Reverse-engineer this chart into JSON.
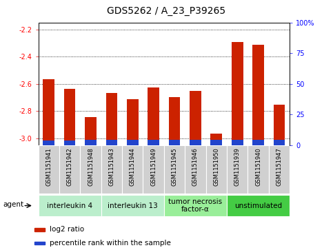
{
  "title": "GDS5262 / A_23_P39265",
  "samples": [
    "GSM1151941",
    "GSM1151942",
    "GSM1151948",
    "GSM1151943",
    "GSM1151944",
    "GSM1151949",
    "GSM1151945",
    "GSM1151946",
    "GSM1151950",
    "GSM1151939",
    "GSM1151940",
    "GSM1151947"
  ],
  "log2_values": [
    -2.565,
    -2.635,
    -2.845,
    -2.67,
    -2.715,
    -2.625,
    -2.7,
    -2.655,
    -2.965,
    -2.295,
    -2.315,
    -2.755
  ],
  "percentile_heights": [
    0.032,
    0.032,
    0.038,
    0.038,
    0.038,
    0.038,
    0.038,
    0.038,
    0.038,
    0.038,
    0.038,
    0.038
  ],
  "ymin": -3.05,
  "ymax": -2.15,
  "yticks": [
    -3.0,
    -2.8,
    -2.6,
    -2.4,
    -2.2
  ],
  "right_yticks": [
    0,
    25,
    50,
    75,
    100
  ],
  "groups": [
    {
      "label": "interleukin 4",
      "indices": [
        0,
        1,
        2
      ],
      "color": "#bbeecc"
    },
    {
      "label": "interleukin 13",
      "indices": [
        3,
        4,
        5
      ],
      "color": "#bbeecc"
    },
    {
      "label": "tumor necrosis\nfactor-α",
      "indices": [
        6,
        7,
        8
      ],
      "color": "#99ee99"
    },
    {
      "label": "unstimulated",
      "indices": [
        9,
        10,
        11
      ],
      "color": "#44cc44"
    }
  ],
  "bar_color_red": "#cc2200",
  "bar_color_blue": "#2244cc",
  "bar_width": 0.55,
  "xlabel_agent": "agent",
  "grid_color": "black",
  "background_color": "#d8d8d8",
  "plot_bg": "white",
  "title_fontsize": 10,
  "tick_fontsize": 7,
  "sample_fontsize": 6,
  "group_fontsize": 7.5,
  "legend_fontsize": 7.5
}
